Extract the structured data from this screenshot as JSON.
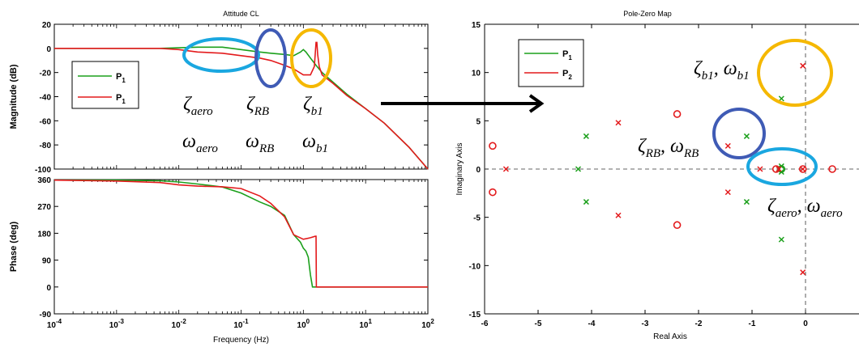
{
  "colors": {
    "green": "#1ca01c",
    "red": "#e31a1c",
    "axis": "#000000",
    "yellow": "#f5b800",
    "blue": "#3f5bb5",
    "cyan": "#1aa7e0"
  },
  "chart_data": [
    {
      "type": "line",
      "title": "Attitude CL",
      "xlabel": "",
      "ylabel": "Magnitude (dB)",
      "xscale": "log",
      "xlim": [
        0.0001,
        100
      ],
      "ylim": [
        -100,
        20
      ],
      "yticks": [
        "20",
        "0",
        "-20",
        "-40",
        "-60",
        "-80",
        "-100"
      ],
      "legend": {
        "position": "left",
        "entries": [
          "P1",
          "P1"
        ]
      },
      "series": [
        {
          "name": "P1",
          "color": "green",
          "x": [
            0.0001,
            0.001,
            0.005,
            0.01,
            0.02,
            0.05,
            0.1,
            0.2,
            0.3,
            0.5,
            0.7,
            0.9,
            1.0,
            1.1,
            1.3,
            1.6,
            2,
            3,
            5,
            10,
            20,
            50,
            100
          ],
          "y": [
            0,
            0,
            0,
            0.5,
            1,
            1,
            -1,
            -3,
            -4,
            -5,
            -6,
            -3,
            -1,
            -3,
            -8,
            -14,
            -20,
            -28,
            -38,
            -50,
            -62,
            -82,
            -100
          ]
        },
        {
          "name": "P1",
          "color": "red",
          "x": [
            0.0001,
            0.001,
            0.005,
            0.01,
            0.02,
            0.05,
            0.1,
            0.2,
            0.3,
            0.5,
            0.7,
            1.0,
            1.3,
            1.5,
            1.6,
            1.65,
            1.7,
            1.8,
            2,
            3,
            5,
            10,
            20,
            50,
            100
          ],
          "y": [
            0,
            0,
            0,
            -1,
            -3,
            -4,
            -6,
            -8,
            -10,
            -14,
            -17,
            -22,
            -22,
            -15,
            5,
            5,
            -5,
            -15,
            -22,
            -29,
            -39,
            -50,
            -62,
            -82,
            -100
          ]
        }
      ]
    },
    {
      "type": "line",
      "title": "",
      "xlabel": "Frequency  (Hz)",
      "ylabel": "Phase (deg)",
      "xscale": "log",
      "xlim": [
        0.0001,
        100
      ],
      "ylim": [
        -90,
        360
      ],
      "xticks": [
        {
          "base": "10",
          "exp": "-4"
        },
        {
          "base": "10",
          "exp": "-3"
        },
        {
          "base": "10",
          "exp": "-2"
        },
        {
          "base": "10",
          "exp": "-1"
        },
        {
          "base": "10",
          "exp": "0"
        },
        {
          "base": "10",
          "exp": "1"
        },
        {
          "base": "10",
          "exp": "2"
        }
      ],
      "yticks": [
        "360",
        "270",
        "180",
        "90",
        "0",
        "-90"
      ],
      "series": [
        {
          "name": "P1",
          "color": "green",
          "x": [
            0.0001,
            0.001,
            0.005,
            0.01,
            0.02,
            0.05,
            0.1,
            0.2,
            0.3,
            0.5,
            0.7,
            0.9,
            1.0,
            1.1,
            1.2,
            1.3,
            1.4,
            2,
            10,
            100
          ],
          "y": [
            358,
            358,
            356,
            352,
            345,
            335,
            315,
            285,
            270,
            240,
            175,
            150,
            130,
            120,
            100,
            40,
            0,
            0,
            0,
            0
          ]
        },
        {
          "name": "P1",
          "color": "red",
          "x": [
            0.0001,
            0.001,
            0.005,
            0.01,
            0.02,
            0.05,
            0.1,
            0.2,
            0.3,
            0.5,
            0.7,
            1.0,
            1.3,
            1.55,
            1.6,
            1.62,
            1.7,
            2,
            10,
            100
          ],
          "y": [
            358,
            355,
            350,
            342,
            338,
            336,
            330,
            305,
            280,
            235,
            175,
            160,
            165,
            170,
            170,
            0,
            0,
            0,
            0,
            0
          ]
        }
      ]
    },
    {
      "type": "scatter",
      "title": "Pole-Zero Map",
      "xlabel": "Real Axis",
      "ylabel": "Imaginary Axis",
      "xlim": [
        -6,
        1
      ],
      "ylim": [
        -15,
        15
      ],
      "xticks": [
        "-6",
        "-5",
        "-4",
        "-3",
        "-2",
        "-1",
        "0"
      ],
      "yticks": [
        "15",
        "10",
        "5",
        "0",
        "-5",
        "-10",
        "-15"
      ],
      "legend": {
        "position": "top-left",
        "entries": [
          "P1",
          "P2"
        ]
      },
      "series": [
        {
          "name": "P1",
          "color": "green",
          "poles": [
            [
              -4.1,
              3.4
            ],
            [
              -4.1,
              -3.4
            ],
            [
              -4.25,
              0
            ],
            [
              -1.1,
              3.4
            ],
            [
              -1.1,
              -3.4
            ],
            [
              -0.45,
              7.3
            ],
            [
              -0.45,
              -7.3
            ],
            [
              -0.45,
              0.3
            ],
            [
              -0.45,
              -0.3
            ],
            [
              -0.5,
              0
            ]
          ],
          "zeros": [
            [
              -0.45,
              0
            ]
          ]
        },
        {
          "name": "P2",
          "color": "red",
          "poles": [
            [
              -5.6,
              0
            ],
            [
              -3.5,
              4.8
            ],
            [
              -3.5,
              -4.8
            ],
            [
              -1.45,
              2.4
            ],
            [
              -1.45,
              -2.4
            ],
            [
              -0.85,
              0
            ],
            [
              -0.05,
              10.7
            ],
            [
              -0.05,
              -10.7
            ],
            [
              -0.05,
              0
            ],
            [
              -0.5,
              0
            ]
          ],
          "zeros": [
            [
              -5.85,
              2.4
            ],
            [
              -5.85,
              -2.4
            ],
            [
              -2.4,
              5.7
            ],
            [
              -2.4,
              -5.8
            ],
            [
              -0.55,
              0
            ],
            [
              -0.05,
              0
            ],
            [
              0.5,
              0
            ]
          ]
        }
      ]
    }
  ]
}
